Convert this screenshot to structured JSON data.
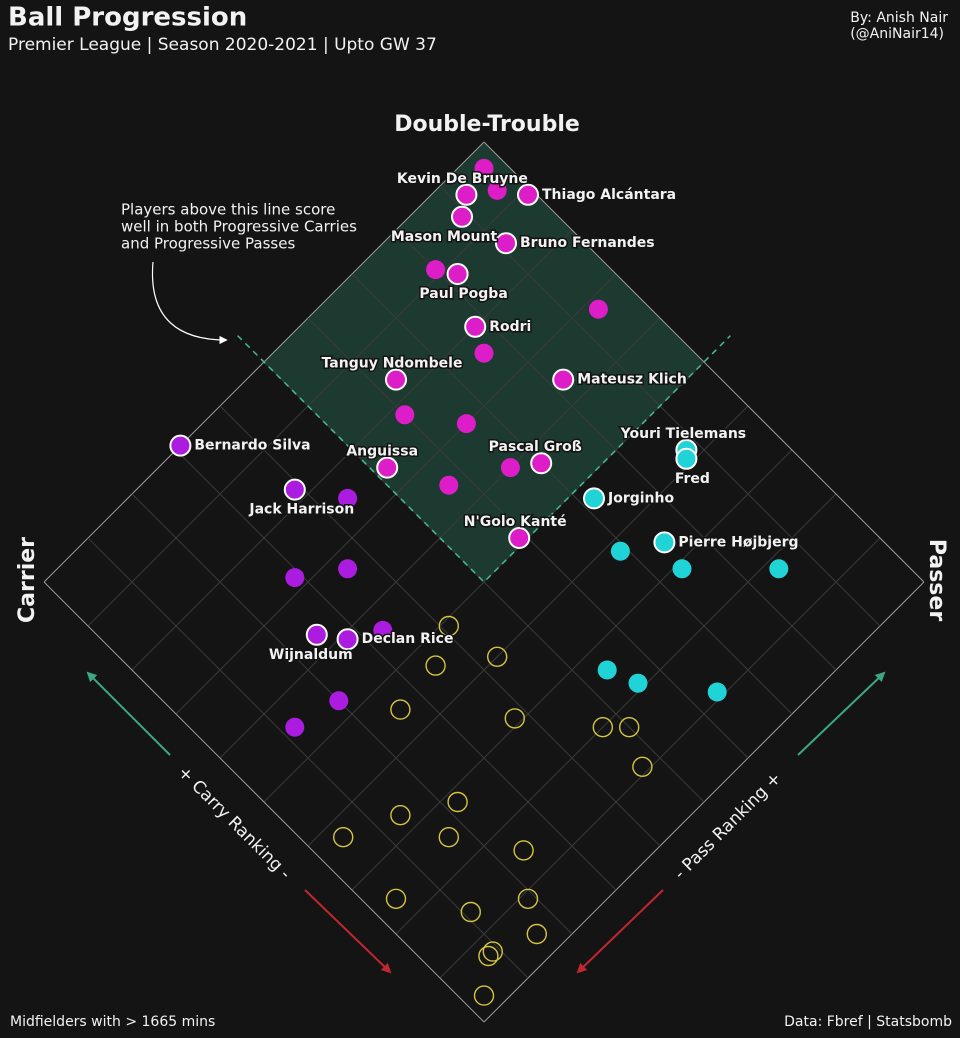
{
  "chart_data": {
    "type": "scatter",
    "title": "Ball Progression",
    "subtitle": "Premier League | Season 2020-2021 | Upto GW 37",
    "credit": [
      "By: Anish Nair",
      "(@AniNair14)"
    ],
    "region_label": "Double-Trouble",
    "annotation": [
      "Players above this line score",
      "well in both Progressive Carries",
      "and Progressive Passes"
    ],
    "left_label": "Carrier",
    "right_label": "Passer",
    "x_label": "+ Carry Ranking -",
    "y_label": "- Pass Ranking +",
    "footer_left": "Midfielders with > 1665 mins",
    "footer_right": "Data: Fbref | Statsbomb",
    "xlim": [
      0,
      10
    ],
    "ylim": [
      0,
      10
    ],
    "xticks": [
      0,
      1,
      2,
      3,
      4,
      5,
      6,
      7,
      8,
      9,
      10
    ],
    "yticks": [
      0,
      1,
      2,
      3,
      4,
      5,
      6,
      7,
      8,
      9,
      10
    ],
    "threshold": 5,
    "grid": true,
    "series": [
      {
        "color": "#dd1dc8",
        "filled": true,
        "x": [
          9.6,
          8.9,
          9.4,
          8.6,
          8.8,
          8.0,
          8.3,
          6.4,
          7.4,
          5.7,
          5.1,
          9.7,
          9.3,
          9.1,
          6.8,
          7.6,
          7.8,
          7.0,
          6.5,
          6.0
        ],
        "y": [
          9.2,
          9.9,
          8.9,
          9.1,
          8.2,
          7.8,
          6.3,
          8.2,
          5.2,
          7.0,
          5.9,
          9.7,
          9.6,
          8.0,
          9.4,
          7.6,
          6.0,
          6.6,
          5.7,
          6.6
        ],
        "labels": [
          "Kevin De Bruyne",
          "Thiago Alcántara",
          "Mason Mount",
          "Bruno Fernandes",
          "Paul Pogba",
          "Rodri",
          "Tanguy Ndombele",
          "Mateusz Klich",
          "Anguissa",
          "Pascal Groß",
          "N'Golo Kanté",
          null,
          null,
          null,
          null,
          null,
          null,
          null,
          null,
          null
        ]
      },
      {
        "color": "#ab1be0",
        "filled": true,
        "x": [
          10.0,
          8.2,
          6.3,
          5.9,
          7.5,
          7.2,
          6.7,
          5.6,
          5.3,
          5.5
        ],
        "y": [
          3.1,
          3.9,
          2.5,
          2.8,
          4.4,
          2.9,
          3.6,
          3.3,
          2.0,
          1.2
        ],
        "labels": [
          "Bernardo Silva",
          "Jack Harrison",
          "Wijnaldum",
          "Declan Rice",
          null,
          null,
          null,
          null,
          null,
          null
        ]
      },
      {
        "color": "#1fd3d6",
        "filled": true,
        "x": [
          4.2,
          4.1,
          4.7,
          3.4,
          3.8,
          2.9,
          1.8,
          2.6,
          2.1,
          1.1
        ],
        "y": [
          8.8,
          8.7,
          7.2,
          7.5,
          6.9,
          7.4,
          8.5,
          5.4,
          5.6,
          6.4
        ],
        "labels": [
          "Youri Tielemans",
          "Fred",
          "Jorginho",
          "Pierre Højbjerg",
          null,
          null,
          null,
          null,
          null,
          null
        ]
      },
      {
        "color": "#d6c43a",
        "filled": false,
        "x": [
          4.9,
          4.0,
          4.6,
          4.5,
          3.1,
          2.0,
          1.7,
          1.1,
          2.8,
          3.3,
          3.7,
          2.5,
          1.5,
          2.4,
          0.9,
          1.4,
          0.4,
          0.7,
          0.7,
          0.3
        ],
        "y": [
          4.1,
          4.3,
          3.5,
          2.6,
          3.8,
          4.7,
          5.0,
          4.7,
          2.2,
          1.4,
          0.5,
          1.7,
          2.4,
          0.4,
          1.9,
          1.1,
          1.6,
          0.9,
          0.8,
          0.3
        ],
        "labels": [
          null,
          null,
          null,
          null,
          null,
          null,
          null,
          null,
          null,
          null,
          null,
          null,
          null,
          null,
          null,
          null,
          null,
          null,
          null,
          null
        ]
      }
    ]
  }
}
